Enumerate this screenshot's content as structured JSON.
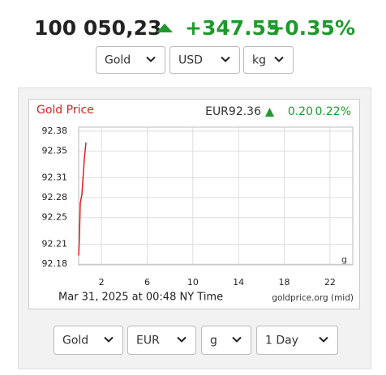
{
  "header": {
    "price": "100 050,23",
    "change": "+347.55",
    "change_pct": "+0.35%"
  },
  "selects_top": [
    "Gold",
    "USD",
    "kg"
  ],
  "chart_data": {
    "type": "line",
    "title": "Gold Price",
    "price": "EUR92.36",
    "change": "0.20",
    "change_pct": "0.22%",
    "x": [
      0,
      0.07,
      0.14,
      0.28,
      0.5,
      0.64
    ],
    "series": [
      {
        "name": "Gold Price",
        "color": "#e02020",
        "values": [
          92.193,
          92.223,
          92.272,
          92.284,
          92.339,
          92.363
        ]
      }
    ],
    "xlim": [
      0,
      24
    ],
    "xticks": [
      2,
      6,
      10,
      14,
      18,
      22
    ],
    "ylim": [
      92.179,
      92.386
    ],
    "yticks": [
      92.18,
      92.21,
      92.25,
      92.28,
      92.31,
      92.35,
      92.38
    ],
    "grid": true,
    "unit": "g",
    "timestamp": "Mar 31, 2025 at 00:48 NY Time",
    "source": "goldprice.org (mid)"
  },
  "selects_bottom": [
    "Gold",
    "EUR",
    "g",
    "1 Day"
  ]
}
